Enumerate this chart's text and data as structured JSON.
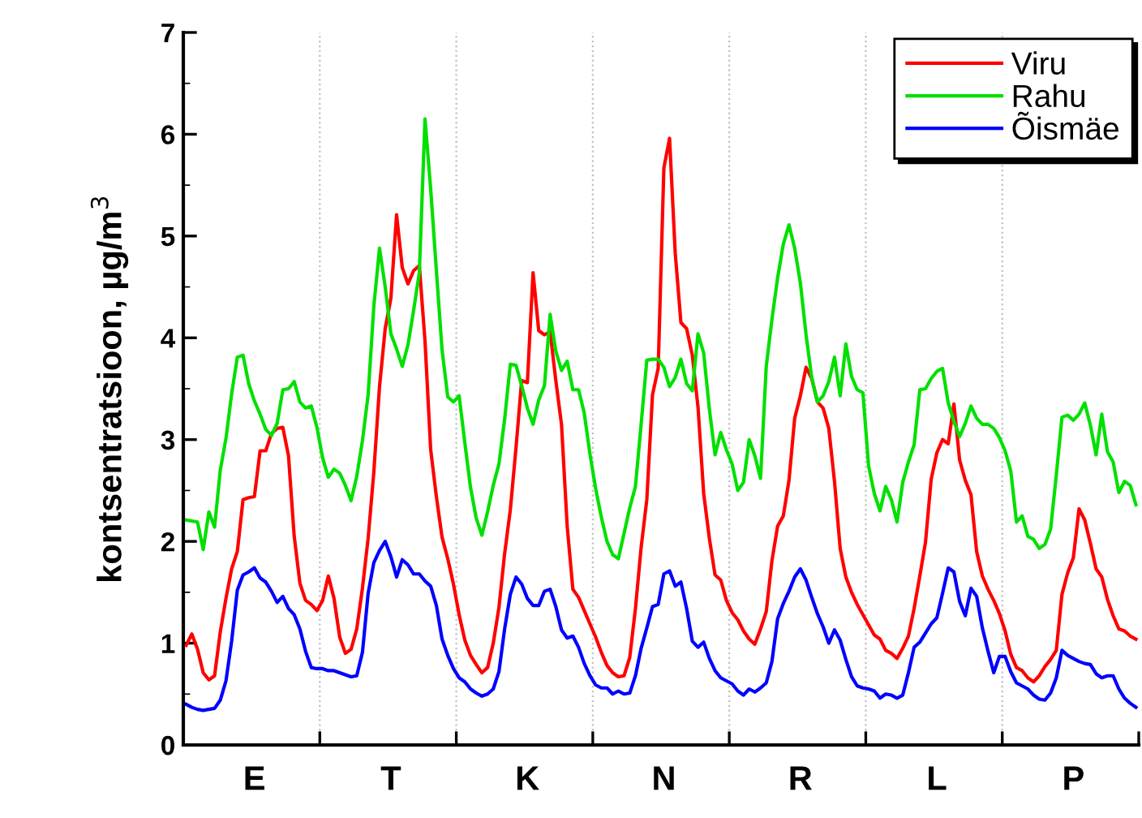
{
  "chart_data": {
    "type": "line",
    "ylabel": "kontsentratsioon, µg/m$^{3}$",
    "categories": [
      null,
      null,
      null,
      null,
      null,
      null,
      null,
      null,
      null,
      null,
      null,
      null,
      "E",
      null,
      null,
      null,
      null,
      null,
      null,
      null,
      null,
      null,
      null,
      null,
      null,
      null,
      null,
      null,
      null,
      null,
      null,
      null,
      null,
      null,
      null,
      null,
      "T",
      null,
      null,
      null,
      null,
      null,
      null,
      null,
      null,
      null,
      null,
      null,
      null,
      null,
      null,
      null,
      null,
      null,
      null,
      null,
      null,
      null,
      null,
      null,
      "K",
      null,
      null,
      null,
      null,
      null,
      null,
      null,
      null,
      null,
      null,
      null,
      null,
      null,
      null,
      null,
      null,
      null,
      null,
      null,
      null,
      null,
      null,
      null,
      "N",
      null,
      null,
      null,
      null,
      null,
      null,
      null,
      null,
      null,
      null,
      null,
      null,
      null,
      null,
      null,
      null,
      null,
      null,
      null,
      null,
      null,
      null,
      null,
      "R",
      null,
      null,
      null,
      null,
      null,
      null,
      null,
      null,
      null,
      null,
      null,
      null,
      null,
      null,
      null,
      null,
      null,
      null,
      null,
      null,
      null,
      null,
      null,
      "L",
      null,
      null,
      null,
      null,
      null,
      null,
      null,
      null,
      null,
      null,
      null,
      null,
      null,
      null,
      null,
      null,
      null,
      null,
      null,
      null,
      null,
      null,
      null,
      "P",
      null,
      null,
      null,
      null,
      null,
      null,
      null,
      null,
      null,
      null,
      null
    ],
    "ylim": [
      0,
      7
    ],
    "yticks": [
      0,
      1,
      2,
      3,
      4,
      5,
      6,
      7
    ],
    "grid": "x",
    "legend": "top right",
    "marker": "none",
    "line_style": "solid",
    "series": [
      {
        "name": "Viru",
        "color": "#ff0000",
        "values": [
          0.98,
          1.09,
          0.94,
          0.71,
          0.64,
          0.68,
          1.11,
          1.44,
          1.73,
          1.9,
          2.41,
          2.43,
          2.44,
          2.89,
          2.89,
          3.06,
          3.11,
          3.12,
          2.84,
          2.05,
          1.59,
          1.42,
          1.38,
          1.32,
          1.42,
          1.66,
          1.44,
          1.06,
          0.9,
          0.94,
          1.14,
          1.54,
          2.03,
          2.68,
          3.52,
          4.09,
          4.39,
          5.21,
          4.69,
          4.53,
          4.66,
          4.71,
          3.97,
          2.9,
          2.44,
          2.04,
          1.83,
          1.58,
          1.28,
          1.03,
          0.88,
          0.79,
          0.71,
          0.76,
          1.0,
          1.35,
          1.88,
          2.31,
          2.92,
          3.58,
          3.56,
          4.64,
          4.07,
          4.03,
          4.06,
          3.58,
          3.15,
          2.15,
          1.53,
          1.45,
          1.32,
          1.19,
          1.06,
          0.91,
          0.78,
          0.71,
          0.67,
          0.68,
          0.86,
          1.34,
          1.94,
          2.41,
          3.44,
          3.7,
          5.67,
          5.96,
          4.83,
          4.15,
          4.09,
          3.83,
          3.32,
          2.47,
          2.03,
          1.67,
          1.62,
          1.42,
          1.3,
          1.23,
          1.12,
          1.04,
          0.99,
          1.14,
          1.31,
          1.81,
          2.15,
          2.25,
          2.6,
          3.21,
          3.43,
          3.71,
          3.6,
          3.37,
          3.31,
          3.11,
          2.59,
          1.93,
          1.65,
          1.5,
          1.38,
          1.28,
          1.18,
          1.08,
          1.04,
          0.93,
          0.9,
          0.85,
          0.95,
          1.07,
          1.34,
          1.66,
          1.99,
          2.61,
          2.87,
          3.0,
          2.96,
          3.35,
          2.8,
          2.6,
          2.46,
          1.9,
          1.66,
          1.53,
          1.42,
          1.29,
          1.12,
          0.89,
          0.76,
          0.73,
          0.66,
          0.62,
          0.68,
          0.77,
          0.84,
          0.93,
          1.48,
          1.69,
          1.84,
          2.32,
          2.21,
          1.98,
          1.73,
          1.65,
          1.43,
          1.27,
          1.14,
          1.12,
          1.07,
          1.04
        ]
      },
      {
        "name": "Rahu",
        "color": "#00e000",
        "values": [
          2.21,
          2.2,
          2.19,
          1.92,
          2.29,
          2.14,
          2.7,
          3.01,
          3.45,
          3.81,
          3.83,
          3.55,
          3.38,
          3.25,
          3.1,
          3.04,
          3.16,
          3.49,
          3.5,
          3.57,
          3.37,
          3.31,
          3.33,
          3.12,
          2.82,
          2.63,
          2.71,
          2.67,
          2.55,
          2.4,
          2.64,
          2.99,
          3.44,
          4.31,
          4.88,
          4.5,
          4.04,
          3.89,
          3.72,
          3.93,
          4.27,
          4.64,
          6.15,
          5.46,
          4.66,
          3.88,
          3.42,
          3.37,
          3.43,
          2.97,
          2.53,
          2.23,
          2.06,
          2.29,
          2.55,
          2.76,
          3.2,
          3.74,
          3.73,
          3.53,
          3.31,
          3.15,
          3.39,
          3.53,
          4.23,
          3.87,
          3.68,
          3.77,
          3.49,
          3.49,
          3.26,
          2.86,
          2.52,
          2.24,
          2.0,
          1.87,
          1.83,
          2.08,
          2.33,
          2.54,
          3.15,
          3.78,
          3.79,
          3.79,
          3.71,
          3.52,
          3.61,
          3.79,
          3.55,
          3.48,
          4.04,
          3.85,
          3.3,
          2.85,
          3.07,
          2.9,
          2.76,
          2.5,
          2.58,
          3.0,
          2.84,
          2.62,
          3.72,
          4.18,
          4.59,
          4.92,
          5.11,
          4.88,
          4.54,
          4.03,
          3.61,
          3.37,
          3.43,
          3.57,
          3.81,
          3.43,
          3.94,
          3.62,
          3.49,
          3.46,
          2.74,
          2.47,
          2.3,
          2.54,
          2.41,
          2.19,
          2.58,
          2.78,
          2.95,
          3.49,
          3.5,
          3.6,
          3.67,
          3.7,
          3.36,
          3.18,
          3.03,
          3.16,
          3.33,
          3.21,
          3.15,
          3.15,
          3.11,
          3.02,
          2.89,
          2.69,
          2.19,
          2.25,
          2.05,
          2.02,
          1.93,
          1.97,
          2.12,
          2.65,
          3.22,
          3.24,
          3.19,
          3.25,
          3.36,
          3.14,
          2.85,
          3.25,
          2.88,
          2.78,
          2.48,
          2.59,
          2.55,
          2.36
        ]
      },
      {
        "name": "Õismäe",
        "color": "#0000ff",
        "values": [
          0.4,
          0.37,
          0.35,
          0.34,
          0.35,
          0.36,
          0.44,
          0.63,
          1.02,
          1.52,
          1.67,
          1.7,
          1.74,
          1.64,
          1.6,
          1.51,
          1.4,
          1.46,
          1.34,
          1.28,
          1.14,
          0.92,
          0.76,
          0.75,
          0.75,
          0.73,
          0.73,
          0.71,
          0.69,
          0.67,
          0.68,
          0.91,
          1.49,
          1.79,
          1.91,
          2.0,
          1.85,
          1.65,
          1.82,
          1.77,
          1.68,
          1.68,
          1.61,
          1.56,
          1.37,
          1.04,
          0.88,
          0.75,
          0.66,
          0.62,
          0.55,
          0.51,
          0.48,
          0.5,
          0.55,
          0.72,
          1.14,
          1.48,
          1.65,
          1.58,
          1.44,
          1.37,
          1.37,
          1.51,
          1.53,
          1.36,
          1.13,
          1.05,
          1.07,
          0.96,
          0.8,
          0.68,
          0.59,
          0.56,
          0.56,
          0.5,
          0.53,
          0.5,
          0.51,
          0.68,
          0.95,
          1.15,
          1.36,
          1.38,
          1.68,
          1.71,
          1.56,
          1.6,
          1.34,
          1.02,
          0.96,
          1.01,
          0.85,
          0.73,
          0.66,
          0.63,
          0.6,
          0.53,
          0.49,
          0.55,
          0.52,
          0.56,
          0.61,
          0.82,
          1.24,
          1.39,
          1.51,
          1.65,
          1.73,
          1.62,
          1.45,
          1.29,
          1.16,
          1.0,
          1.13,
          1.03,
          0.84,
          0.67,
          0.58,
          0.56,
          0.55,
          0.53,
          0.46,
          0.5,
          0.49,
          0.46,
          0.49,
          0.71,
          0.96,
          1.01,
          1.1,
          1.19,
          1.25,
          1.49,
          1.74,
          1.7,
          1.41,
          1.27,
          1.54,
          1.46,
          1.15,
          0.92,
          0.71,
          0.87,
          0.87,
          0.72,
          0.61,
          0.58,
          0.55,
          0.49,
          0.45,
          0.44,
          0.51,
          0.66,
          0.93,
          0.88,
          0.85,
          0.82,
          0.8,
          0.79,
          0.7,
          0.66,
          0.68,
          0.68,
          0.55,
          0.46,
          0.41,
          0.37
        ]
      }
    ]
  }
}
